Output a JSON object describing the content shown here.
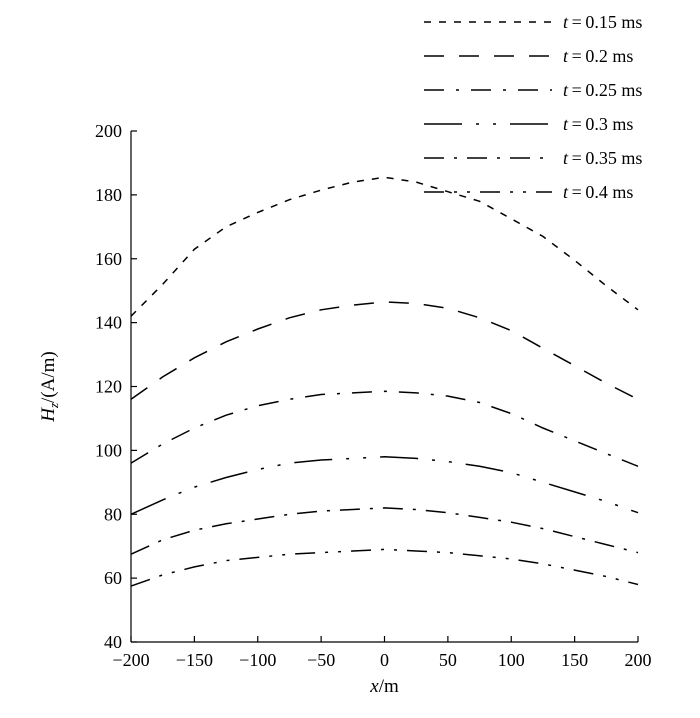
{
  "chart_data": {
    "type": "line",
    "x_label_var": "x",
    "x_label_unit": "/m",
    "y_label_var": "H",
    "y_label_sub": "z",
    "y_label_unit": "/(A/m)",
    "xlim": [
      -200,
      200
    ],
    "ylim": [
      40,
      200
    ],
    "xticks": [
      -200,
      -150,
      -100,
      -50,
      0,
      50,
      100,
      150,
      200
    ],
    "yticks": [
      40,
      60,
      80,
      100,
      120,
      140,
      160,
      180,
      200
    ],
    "xtick_labels": [
      "−200",
      "−150",
      "−100",
      "−50",
      "0",
      "50",
      "100",
      "150",
      "200"
    ],
    "ytick_labels": [
      "40",
      "60",
      "80",
      "100",
      "120",
      "140",
      "160",
      "180",
      "200"
    ],
    "grid": false,
    "legend_position": "top-right",
    "series": [
      {
        "name": "t = 0.15 ms",
        "var": "t",
        "value": "0.15 ms",
        "dash": "7,8",
        "x": [
          -200,
          -175,
          -150,
          -125,
          -100,
          -75,
          -50,
          -25,
          0,
          25,
          50,
          75,
          100,
          125,
          150,
          175,
          200
        ],
        "y": [
          142,
          152,
          163,
          170,
          174.5,
          178.5,
          181.5,
          184,
          185.5,
          184,
          181,
          178,
          172.5,
          167,
          159.5,
          151.5,
          144
        ]
      },
      {
        "name": "t = 0.2 ms",
        "var": "t",
        "value": "0.2 ms",
        "dash": "20,15",
        "x": [
          -200,
          -175,
          -150,
          -125,
          -100,
          -75,
          -50,
          -25,
          0,
          25,
          50,
          75,
          100,
          125,
          150,
          175,
          200
        ],
        "y": [
          116,
          123,
          129,
          134,
          138,
          141.5,
          144,
          145.5,
          146.5,
          146,
          144.5,
          141.5,
          137.5,
          132,
          126.5,
          121,
          116
        ]
      },
      {
        "name": "t = 0.25 ms",
        "var": "t",
        "value": "0.25 ms",
        "dash": "20,12,3,12",
        "x": [
          -200,
          -175,
          -150,
          -125,
          -100,
          -75,
          -50,
          -25,
          0,
          25,
          50,
          75,
          100,
          125,
          150,
          175,
          200
        ],
        "y": [
          96,
          102,
          107,
          111,
          114,
          116,
          117.5,
          118,
          118.5,
          118,
          117,
          115,
          111.5,
          107,
          103,
          99,
          95
        ]
      },
      {
        "name": "t = 0.3 ms",
        "var": "t",
        "value": "0.3 ms",
        "dash": "38,14,3,14,3,14",
        "x": [
          -200,
          -175,
          -150,
          -125,
          -100,
          -75,
          -50,
          -25,
          0,
          25,
          50,
          75,
          100,
          125,
          150,
          175,
          200
        ],
        "y": [
          80,
          84.5,
          88.5,
          91.5,
          94,
          96,
          97,
          97.5,
          98,
          97.5,
          96.5,
          95,
          93,
          90,
          87,
          84,
          80.5
        ]
      },
      {
        "name": "t = 0.35 ms",
        "var": "t",
        "value": "0.35 ms",
        "dash": "20,10,3,10",
        "x": [
          -200,
          -175,
          -150,
          -125,
          -100,
          -75,
          -50,
          -25,
          0,
          25,
          50,
          75,
          100,
          125,
          150,
          175,
          200
        ],
        "y": [
          67.5,
          72,
          75,
          77,
          78.5,
          80,
          81,
          81.5,
          82,
          81.5,
          80.5,
          79,
          77.5,
          75.5,
          73,
          70.5,
          68
        ]
      },
      {
        "name": "t = 0.4 ms",
        "var": "t",
        "value": "0.4 ms",
        "dash": "20,10,3,10,3,10",
        "x": [
          -200,
          -175,
          -150,
          -125,
          -100,
          -75,
          -50,
          -25,
          0,
          25,
          50,
          75,
          100,
          125,
          150,
          175,
          200
        ],
        "y": [
          57.5,
          61,
          63.5,
          65.5,
          66.5,
          67.5,
          68,
          68.5,
          69,
          68.5,
          68,
          67,
          66,
          64.5,
          62.5,
          60.5,
          58
        ]
      }
    ]
  }
}
